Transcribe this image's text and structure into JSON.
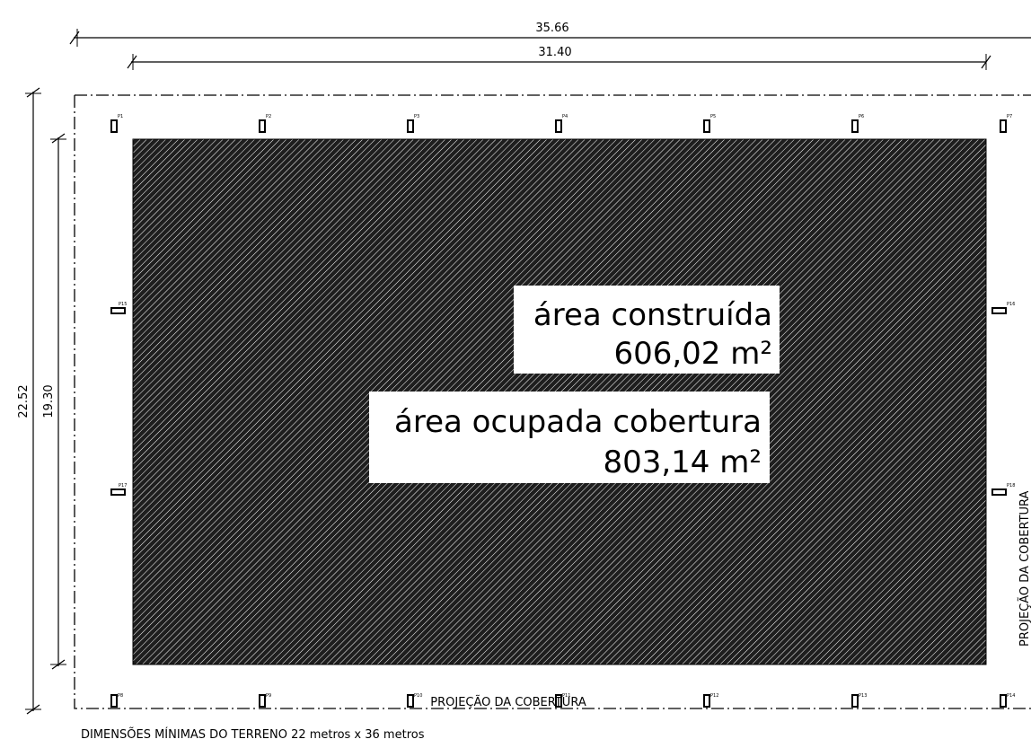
{
  "dimensions": {
    "outer_width": "35.66",
    "inner_width": "31.40",
    "outer_height": "22.52",
    "inner_height": "19.30"
  },
  "pillars": {
    "top": [
      "P1",
      "P2",
      "P3",
      "P4",
      "P5",
      "P6",
      "P7"
    ],
    "bottom": [
      "P8",
      "P9",
      "P10",
      "P11",
      "P12",
      "P13",
      "P14"
    ],
    "left": [
      "P15",
      "P17"
    ],
    "right": [
      "P16",
      "P18"
    ]
  },
  "built_area": {
    "label": "área construída",
    "value": "606,02 m²"
  },
  "roof_area": {
    "label": "área ocupada cobertura",
    "value": "803,14 m²"
  },
  "roof_projection": {
    "bottom_label": "PROJEÇÃO DA COBERTURA",
    "side_label": "PROJEÇÃO DA COBERTURA"
  },
  "footer_note": "DIMENSÕES MÍNIMAS DO TERRENO 22 metros x 36 metros",
  "colors": {
    "hatch_background": "#1e1e1e",
    "hatch_lines": "#ffffff",
    "lines": "#000000"
  }
}
